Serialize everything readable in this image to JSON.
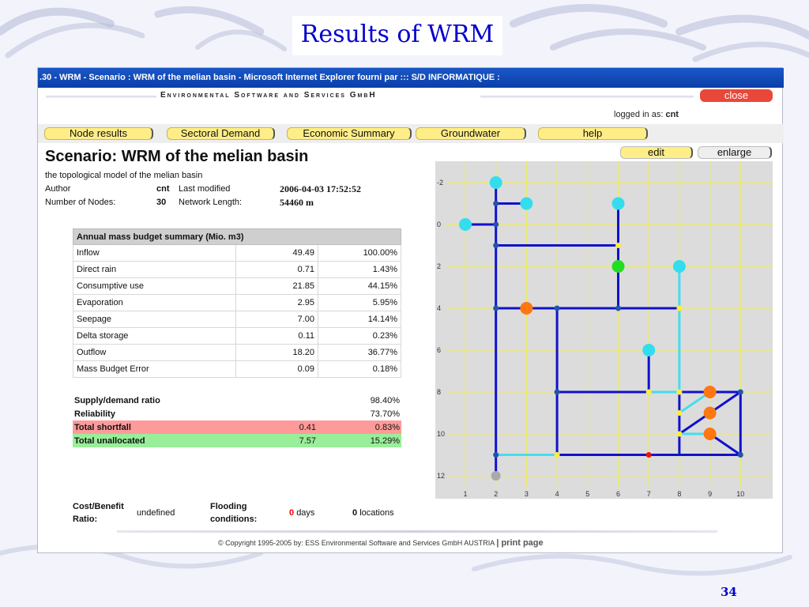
{
  "slide": {
    "title": "Results of WRM",
    "number": "34"
  },
  "browser": {
    "title": ".30 - WRM - Scenario : WRM of the melian basin - Microsoft Internet Explorer fourni par ::: S/D INFORMATIQUE :"
  },
  "header": {
    "company": "Environmental Software and Services GmbH",
    "close_label": "close",
    "logged_label": "logged in as:",
    "logged_user": "cnt"
  },
  "nav": {
    "node_results": "Node results",
    "sectoral_demand": "Sectoral Demand",
    "economic_summary": "Economic Summary",
    "groundwater": "Groundwater",
    "help": "help"
  },
  "actions": {
    "edit": "edit",
    "enlarge": "enlarge"
  },
  "scenario": {
    "title": "Scenario: WRM of the melian basin",
    "description": "the topological model of the melian basin",
    "author_label": "Author",
    "author": "cnt",
    "modified_label": "Last modified",
    "modified": "2006-04-03 17:52:52",
    "nodes_label": "Number of Nodes:",
    "nodes": "30",
    "length_label": "Network Length:",
    "length": "54460 m"
  },
  "budget": {
    "header": "Annual mass budget summary (Mio. m3)",
    "rows": [
      {
        "label": "Inflow",
        "value": "49.49",
        "pct": "100.00%"
      },
      {
        "label": "Direct rain",
        "value": "0.71",
        "pct": "1.43%"
      },
      {
        "label": "Consumptive use",
        "value": "21.85",
        "pct": "44.15%"
      },
      {
        "label": "Evaporation",
        "value": "2.95",
        "pct": "5.95%"
      },
      {
        "label": "Seepage",
        "value": "7.00",
        "pct": "14.14%"
      },
      {
        "label": "Delta storage",
        "value": "0.11",
        "pct": "0.23%"
      },
      {
        "label": "Outflow",
        "value": "18.20",
        "pct": "36.77%"
      },
      {
        "label": "Mass Budget Error",
        "value": "0.09",
        "pct": "0.18%"
      }
    ]
  },
  "ratios": {
    "supply_label": "Supply/demand ratio",
    "supply_pct": "98.40%",
    "reliability_label": "Reliability",
    "reliability_pct": "73.70%",
    "shortfall_label": "Total shortfall",
    "shortfall_value": "0.41",
    "shortfall_pct": "0.83%",
    "unalloc_label": "Total unallocated",
    "unalloc_value": "7.57",
    "unalloc_pct": "15.29%"
  },
  "bottom": {
    "cost_label_1": "Cost/Benefit",
    "cost_label_2": "Ratio:",
    "cost_value": "undefined",
    "flood_label_1": "Flooding",
    "flood_label_2": "conditions:",
    "days_value": "0",
    "days_unit": "days",
    "locations_value": "0",
    "locations_unit": "locations"
  },
  "footer": {
    "copyright": "© Copyright 1995-2005 by:  ESS  Environmental Software and Services GmbH AUSTRIA",
    "print": "print page"
  },
  "map": {
    "x_ticks": [
      "1",
      "2",
      "3",
      "4",
      "5",
      "6",
      "7",
      "8",
      "9",
      "10"
    ],
    "y_ticks": [
      "-2",
      "0",
      "2",
      "4",
      "6",
      "8",
      "10",
      "12"
    ],
    "colors": {
      "background": "#dcdcdc",
      "grid": "#eeee55",
      "river": "#1111cc",
      "canal": "#44ddee",
      "junction": "#2255aa",
      "source": "#33ddee",
      "demand": "#ff7711",
      "reservoir": "#22dd22",
      "control": "#ffee33",
      "shortage": "#ee1111",
      "outlet": "#aaaaaa"
    },
    "edges": [
      {
        "from": [
          2,
          -2.1
        ],
        "to": [
          2,
          12
        ],
        "kind": "river"
      },
      {
        "from": [
          2,
          -1
        ],
        "to": [
          3,
          -1
        ],
        "kind": "river"
      },
      {
        "from": [
          1,
          0
        ],
        "to": [
          2,
          0
        ],
        "kind": "river"
      },
      {
        "from": [
          2,
          1
        ],
        "to": [
          6,
          1
        ],
        "kind": "river"
      },
      {
        "from": [
          6,
          -1
        ],
        "to": [
          6,
          4
        ],
        "kind": "river"
      },
      {
        "from": [
          2,
          4
        ],
        "to": [
          8,
          4
        ],
        "kind": "river"
      },
      {
        "from": [
          8,
          2
        ],
        "to": [
          8,
          8
        ],
        "kind": "canal"
      },
      {
        "from": [
          4,
          4
        ],
        "to": [
          4,
          11
        ],
        "kind": "river"
      },
      {
        "from": [
          4,
          8
        ],
        "to": [
          7,
          8
        ],
        "kind": "river"
      },
      {
        "from": [
          7,
          6
        ],
        "to": [
          7,
          8
        ],
        "kind": "river"
      },
      {
        "from": [
          7,
          8
        ],
        "to": [
          8,
          8
        ],
        "kind": "canal"
      },
      {
        "from": [
          8,
          8
        ],
        "to": [
          10,
          8
        ],
        "kind": "river"
      },
      {
        "from": [
          8,
          8
        ],
        "to": [
          8,
          11
        ],
        "kind": "river"
      },
      {
        "from": [
          10,
          8
        ],
        "to": [
          10,
          11
        ],
        "kind": "river"
      },
      {
        "from": [
          10,
          8
        ],
        "to": [
          8,
          10
        ],
        "kind": "river"
      },
      {
        "from": [
          8,
          9
        ],
        "to": [
          9,
          8
        ],
        "kind": "canal"
      },
      {
        "from": [
          8,
          10
        ],
        "to": [
          9,
          10
        ],
        "kind": "canal"
      },
      {
        "from": [
          9,
          10
        ],
        "to": [
          10,
          11
        ],
        "kind": "river"
      },
      {
        "from": [
          2,
          11
        ],
        "to": [
          4,
          11
        ],
        "kind": "canal"
      },
      {
        "from": [
          4,
          11
        ],
        "to": [
          10,
          11
        ],
        "kind": "river"
      }
    ],
    "nodes": [
      {
        "x": 2,
        "y": -2,
        "kind": "source",
        "size": "large"
      },
      {
        "x": 3,
        "y": -1,
        "kind": "source",
        "size": "large"
      },
      {
        "x": 1,
        "y": 0,
        "kind": "source",
        "size": "large"
      },
      {
        "x": 6,
        "y": -1,
        "kind": "source",
        "size": "large"
      },
      {
        "x": 8,
        "y": 2,
        "kind": "source",
        "size": "large"
      },
      {
        "x": 7,
        "y": 6,
        "kind": "source",
        "size": "large"
      },
      {
        "x": 6,
        "y": 2,
        "kind": "reservoir",
        "size": "large"
      },
      {
        "x": 3,
        "y": 4,
        "kind": "demand",
        "size": "large"
      },
      {
        "x": 9,
        "y": 8,
        "kind": "demand",
        "size": "large"
      },
      {
        "x": 9,
        "y": 9,
        "kind": "demand",
        "size": "large"
      },
      {
        "x": 9,
        "y": 10,
        "kind": "demand",
        "size": "large"
      },
      {
        "x": 2,
        "y": -1,
        "kind": "junction",
        "size": "small"
      },
      {
        "x": 2,
        "y": 0,
        "kind": "junction",
        "size": "small"
      },
      {
        "x": 2,
        "y": 1,
        "kind": "junction",
        "size": "small"
      },
      {
        "x": 2,
        "y": 4,
        "kind": "junction",
        "size": "small"
      },
      {
        "x": 4,
        "y": 4,
        "kind": "junction",
        "size": "small"
      },
      {
        "x": 6,
        "y": 4,
        "kind": "junction",
        "size": "small"
      },
      {
        "x": 4,
        "y": 8,
        "kind": "junction",
        "size": "small"
      },
      {
        "x": 10,
        "y": 8,
        "kind": "junction",
        "size": "small"
      },
      {
        "x": 10,
        "y": 11,
        "kind": "junction",
        "size": "small"
      },
      {
        "x": 2,
        "y": 11,
        "kind": "junction",
        "size": "small"
      },
      {
        "x": 6,
        "y": 1,
        "kind": "control",
        "size": "small"
      },
      {
        "x": 8,
        "y": 4,
        "kind": "control",
        "size": "small"
      },
      {
        "x": 7,
        "y": 8,
        "kind": "control",
        "size": "small"
      },
      {
        "x": 8,
        "y": 8,
        "kind": "control",
        "size": "small"
      },
      {
        "x": 8,
        "y": 9,
        "kind": "control",
        "size": "small"
      },
      {
        "x": 8,
        "y": 10,
        "kind": "control",
        "size": "small"
      },
      {
        "x": 4,
        "y": 11,
        "kind": "control",
        "size": "small"
      },
      {
        "x": 7,
        "y": 11,
        "kind": "shortage",
        "size": "small"
      },
      {
        "x": 2,
        "y": 12,
        "kind": "outlet",
        "size": "medium"
      }
    ]
  }
}
